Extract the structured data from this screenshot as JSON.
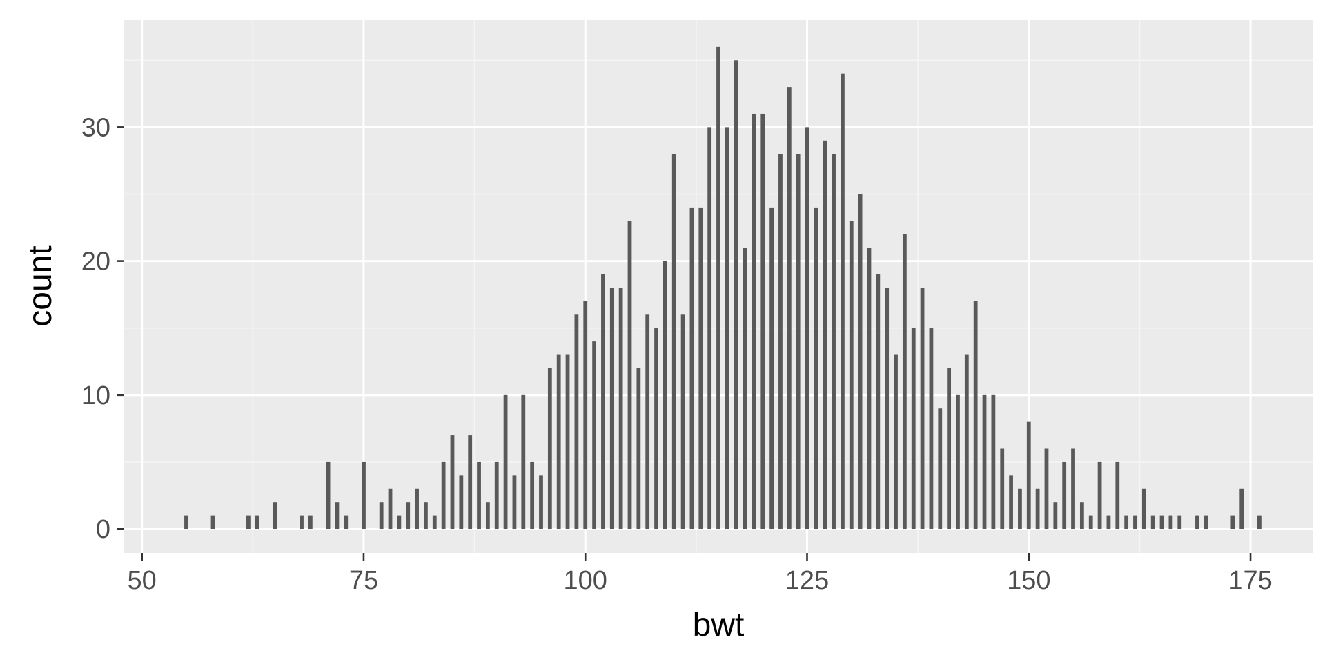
{
  "colors": {
    "panel_background": "#ebebeb",
    "grid_major": "#ffffff",
    "grid_minor": "#f5f5f5",
    "bar_fill": "#595959",
    "tick_color": "#333333",
    "tick_label_color": "#4d4d4d",
    "axis_title_color": "#000000"
  },
  "chart_data": {
    "type": "bar",
    "title": "",
    "xlabel": "bwt",
    "ylabel": "count",
    "xlim": [
      48,
      182
    ],
    "ylim": [
      -1.8,
      38
    ],
    "x_ticks": [
      50,
      75,
      100,
      125,
      150,
      175
    ],
    "x_tick_labels": [
      "50",
      "75",
      "100",
      "125",
      "150",
      "175"
    ],
    "y_ticks": [
      0,
      10,
      20,
      30
    ],
    "y_tick_labels": [
      "0",
      "10",
      "20",
      "30"
    ],
    "grid": true,
    "legend": "none",
    "x": [
      55,
      58,
      62,
      63,
      65,
      68,
      69,
      71,
      72,
      73,
      75,
      77,
      78,
      79,
      80,
      81,
      82,
      83,
      84,
      85,
      86,
      87,
      88,
      89,
      90,
      91,
      92,
      93,
      94,
      95,
      96,
      97,
      98,
      99,
      100,
      101,
      102,
      103,
      104,
      105,
      106,
      107,
      108,
      109,
      110,
      111,
      112,
      113,
      114,
      115,
      116,
      117,
      118,
      119,
      120,
      121,
      122,
      123,
      124,
      125,
      126,
      127,
      128,
      129,
      130,
      131,
      132,
      133,
      134,
      135,
      136,
      137,
      138,
      139,
      140,
      141,
      142,
      143,
      144,
      145,
      146,
      147,
      148,
      149,
      150,
      151,
      152,
      153,
      154,
      155,
      156,
      157,
      158,
      159,
      160,
      161,
      162,
      163,
      164,
      165,
      166,
      167,
      169,
      170,
      173,
      174,
      176
    ],
    "values": [
      1,
      1,
      1,
      1,
      2,
      1,
      1,
      5,
      2,
      1,
      5,
      2,
      3,
      1,
      2,
      3,
      2,
      1,
      5,
      7,
      4,
      7,
      5,
      2,
      5,
      10,
      4,
      10,
      5,
      4,
      12,
      13,
      13,
      16,
      17,
      14,
      19,
      18,
      18,
      23,
      12,
      16,
      15,
      20,
      28,
      16,
      24,
      24,
      30,
      36,
      30,
      35,
      21,
      31,
      31,
      24,
      28,
      33,
      28,
      30,
      24,
      29,
      28,
      34,
      23,
      25,
      21,
      19,
      18,
      13,
      22,
      15,
      18,
      15,
      9,
      12,
      10,
      13,
      17,
      10,
      10,
      6,
      4,
      3,
      8,
      3,
      6,
      2,
      5,
      6,
      2,
      1,
      5,
      1,
      5,
      1,
      1,
      3,
      1,
      1,
      1,
      1,
      1,
      1,
      1,
      3,
      1
    ]
  }
}
